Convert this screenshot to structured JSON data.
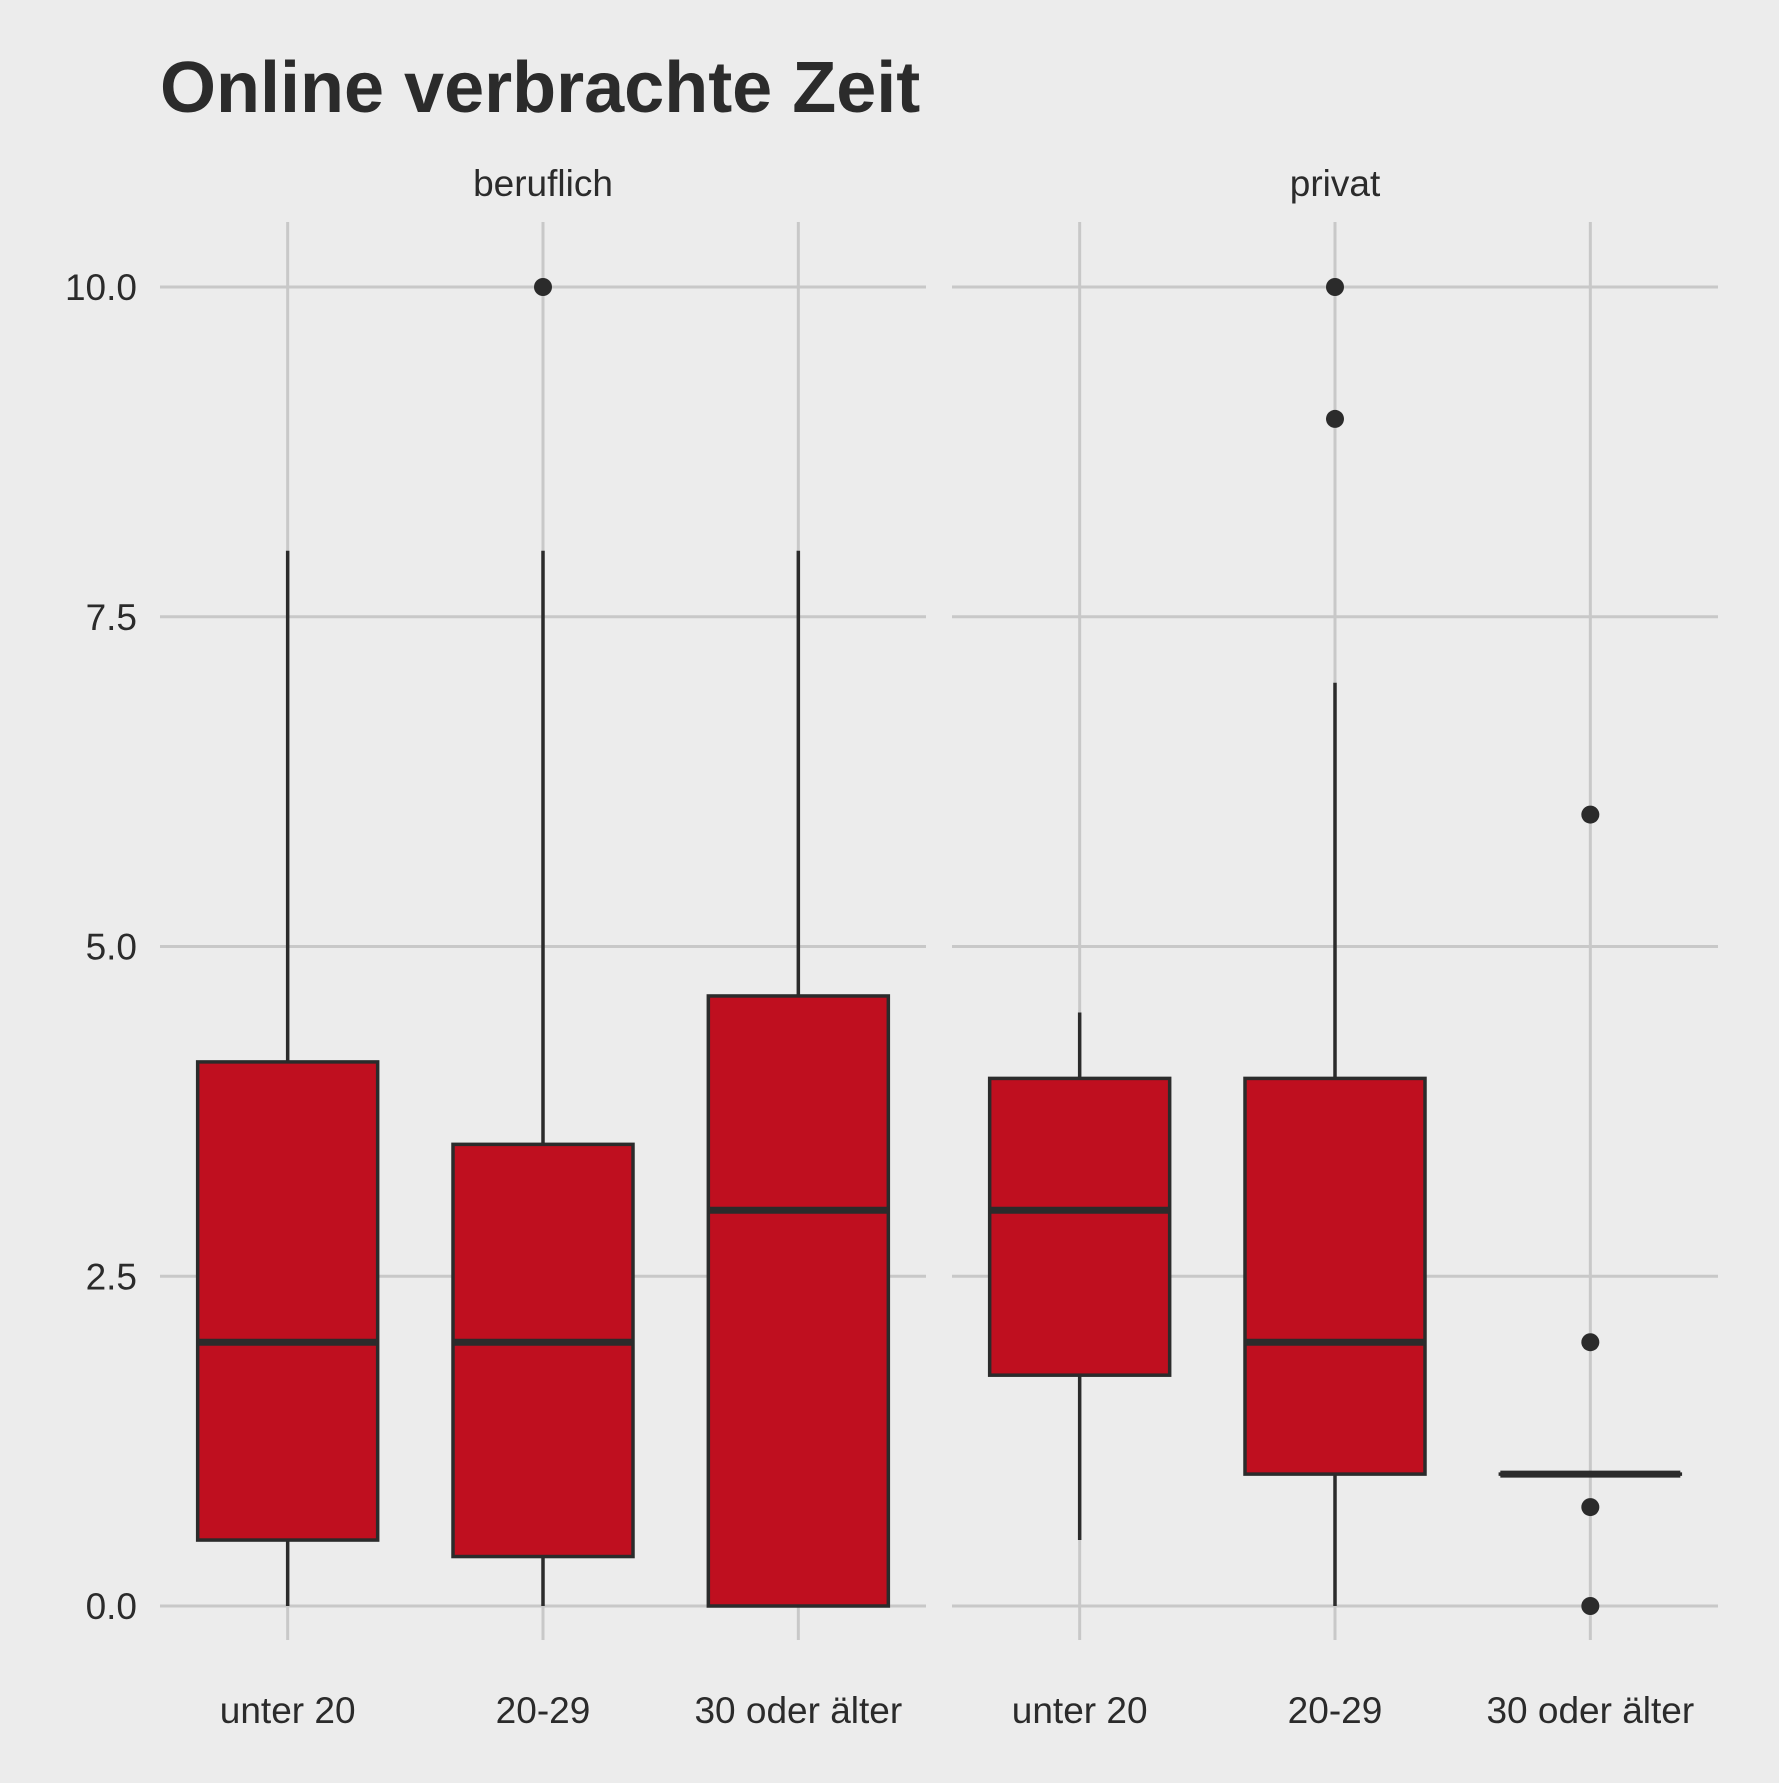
{
  "chart_data": {
    "type": "boxplot",
    "title": "Online verbrachte Zeit",
    "xlabel": "",
    "ylabel": "",
    "ylim": [
      -0.5,
      10.5
    ],
    "yticks": [
      0,
      2.5,
      5,
      7.5,
      10
    ],
    "ytick_labels": [
      "0.0",
      "2.5",
      "5.0",
      "7.5",
      "10.0"
    ],
    "categories": [
      "unter 20",
      "20-29",
      "30 oder älter"
    ],
    "grid": true,
    "legend": "none",
    "colors": {
      "fill": "#bf0f1f",
      "outline": "#2b2b2b",
      "background": "#ececec",
      "grid": "#c8c8c8"
    },
    "facets": [
      {
        "label": "beruflich",
        "boxes": [
          {
            "category": "unter 20",
            "whisker_low": 0,
            "q1": 0.5,
            "median": 2,
            "q3": 4.125,
            "whisker_high": 8,
            "outliers": []
          },
          {
            "category": "20-29",
            "whisker_low": 0,
            "q1": 0.375,
            "median": 2,
            "q3": 3.5,
            "whisker_high": 8,
            "outliers": [
              10
            ]
          },
          {
            "category": "30 oder älter",
            "whisker_low": 0,
            "q1": 0,
            "median": 3,
            "q3": 4.625,
            "whisker_high": 8,
            "outliers": []
          }
        ]
      },
      {
        "label": "privat",
        "boxes": [
          {
            "category": "unter 20",
            "whisker_low": 0.5,
            "q1": 1.75,
            "median": 3,
            "q3": 4,
            "whisker_high": 4.5,
            "outliers": []
          },
          {
            "category": "20-29",
            "whisker_low": 0,
            "q1": 1,
            "median": 2,
            "q3": 4,
            "whisker_high": 7,
            "outliers": [
              9,
              10
            ]
          },
          {
            "category": "30 oder älter",
            "whisker_low": 1,
            "q1": 1,
            "median": 1,
            "q3": 1,
            "whisker_high": 1,
            "outliers": [
              0,
              0.75,
              2,
              6
            ]
          }
        ]
      }
    ]
  }
}
